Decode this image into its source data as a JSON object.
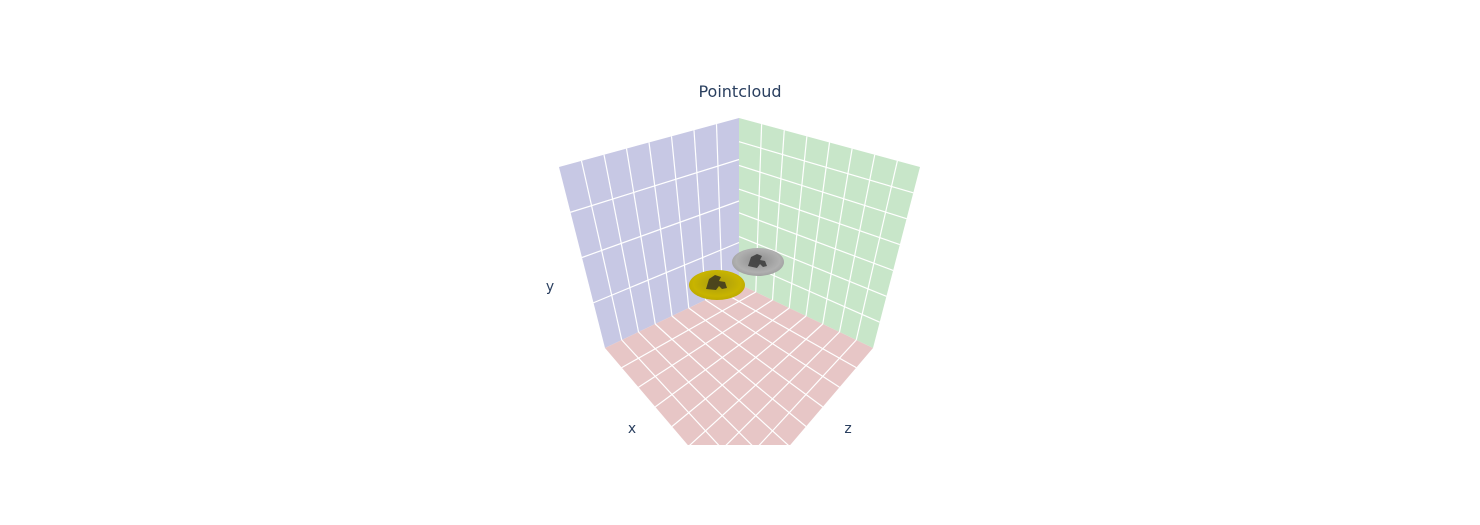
{
  "chart_data": {
    "type": "scatter3d",
    "title": "Pointcloud",
    "axes": {
      "x": "x",
      "y": "y",
      "z": "z"
    },
    "grid": true,
    "colors": {
      "x_wall": "#c7c8e4",
      "z_wall": "#c8e6c9",
      "floor": "#e7c6c6",
      "grid": "#ffffff",
      "text": "#2a3f5f",
      "series_1": "#c8b400",
      "series_2": "#a8a8a8"
    },
    "series": [
      {
        "color": "#c8b400"
      },
      {
        "color": "#a8a8a8"
      }
    ]
  }
}
